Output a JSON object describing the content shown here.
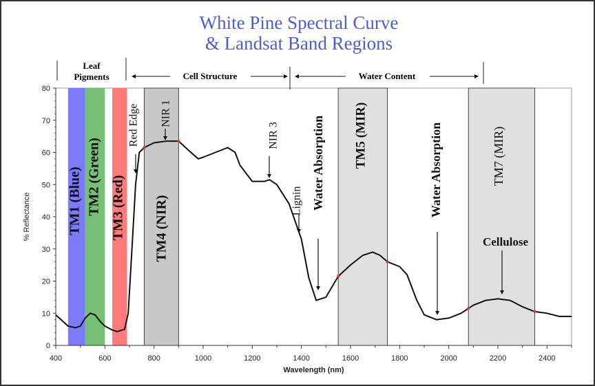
{
  "title_line1": "White Pine Spectral Curve",
  "title_line2": "& Landsat Band Regions",
  "regions": {
    "leaf_pigments_1": "Leaf",
    "leaf_pigments_2": "Pigments",
    "cell_structure": "Cell Structure",
    "water_content": "Water Content"
  },
  "chart_data": {
    "type": "line",
    "xlabel": "Wavelength (nm)",
    "ylabel": "% Reflectance",
    "xlim": [
      400,
      2500
    ],
    "ylim": [
      0,
      80
    ],
    "xticks": [
      400,
      600,
      800,
      1000,
      1200,
      1400,
      1600,
      1800,
      2000,
      2200,
      2400
    ],
    "yticks": [
      0,
      10,
      20,
      30,
      40,
      50,
      60,
      70,
      80
    ],
    "grid": false,
    "x": [
      400,
      450,
      480,
      500,
      520,
      540,
      560,
      580,
      600,
      630,
      650,
      680,
      695,
      710,
      725,
      740,
      760,
      800,
      850,
      900,
      950,
      980,
      1000,
      1050,
      1100,
      1130,
      1150,
      1200,
      1250,
      1270,
      1300,
      1350,
      1400,
      1430,
      1460,
      1500,
      1550,
      1600,
      1650,
      1690,
      1720,
      1750,
      1800,
      1830,
      1870,
      1900,
      1950,
      2000,
      2050,
      2100,
      2150,
      2200,
      2250,
      2300,
      2350,
      2400,
      2450,
      2500
    ],
    "y": [
      9.5,
      6,
      5.5,
      6,
      8.5,
      10,
      9.5,
      7.5,
      6,
      4.8,
      4.3,
      5,
      10,
      30,
      50,
      60,
      61.5,
      63,
      63.5,
      63.5,
      60,
      58,
      58.5,
      60,
      61.5,
      60,
      56,
      51,
      51,
      51.5,
      50,
      44,
      33,
      21,
      14,
      15,
      21.5,
      25,
      28,
      29,
      28,
      26,
      24.5,
      22,
      14,
      9.5,
      8,
      8.5,
      10,
      12.5,
      14,
      14.5,
      14,
      12,
      10.5,
      10,
      9,
      9
    ],
    "bands": [
      {
        "label": "TM1 (Blue)",
        "range": [
          450,
          520
        ],
        "color": "#7b7bff"
      },
      {
        "label": "TM2 (Green)",
        "range": [
          520,
          600
        ],
        "color": "#77bf77"
      },
      {
        "label": "TM3 (Red)",
        "range": [
          630,
          690
        ],
        "color": "#ff7b7b"
      },
      {
        "label": "TM4 (NIR)",
        "range": [
          760,
          900
        ],
        "color": "#c8c8c8"
      },
      {
        "label": "TM5 (MIR)",
        "range": [
          1550,
          1750
        ],
        "color": "#e0e0e0"
      },
      {
        "label": "TM7 (MIR)",
        "range": [
          2080,
          2350
        ],
        "color": "#e0e0e0"
      }
    ],
    "annotations": [
      "Red Edge",
      "NIR 1",
      "NIR 3",
      "Lignin",
      "Water Absorption",
      "Water Absorption",
      "Cellulose"
    ]
  }
}
